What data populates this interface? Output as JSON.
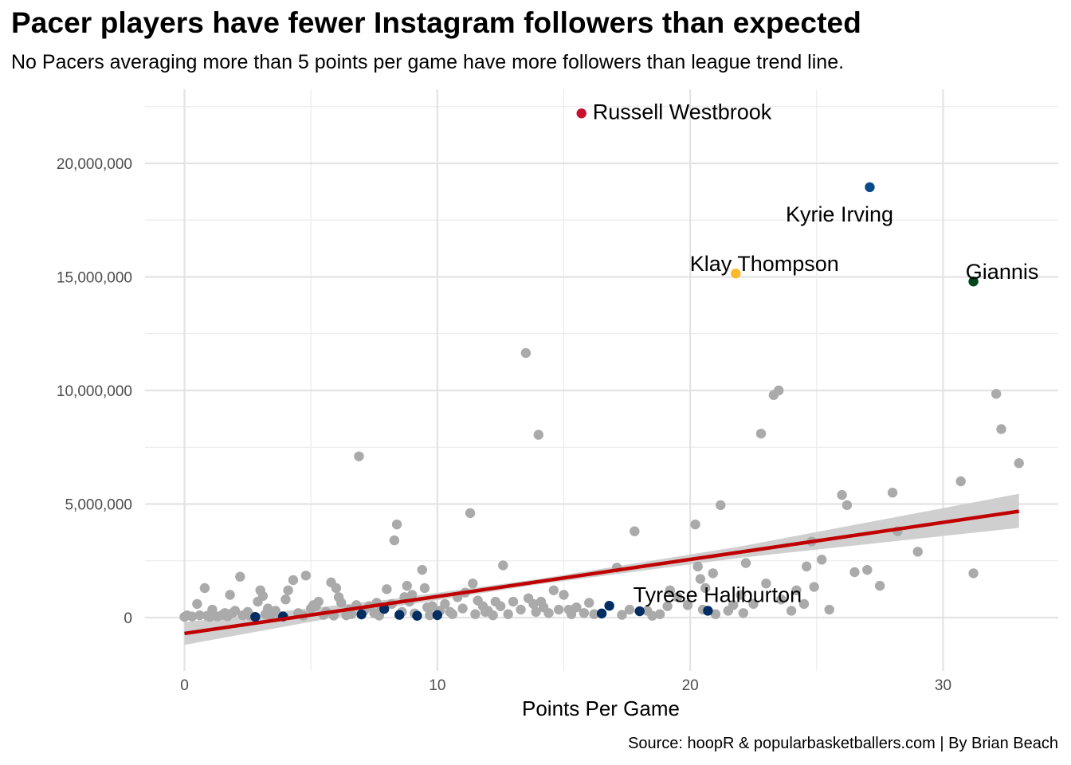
{
  "chart_data": {
    "type": "scatter",
    "title": "Pacer players have fewer Instagram followers than expected",
    "subtitle": "No Pacers averaging more than 5 points per game have more followers than league trend line.",
    "xlabel": "Points Per Game",
    "ylabel": "",
    "caption": "Source: hoopR & popularbasketballers.com | By Brian Beach",
    "xlim": [
      -1.5,
      34.5
    ],
    "ylim": [
      -2250000,
      23000000
    ],
    "x_ticks": [
      0,
      10,
      20,
      30
    ],
    "x_tick_labels": [
      "0",
      "10",
      "20",
      "30"
    ],
    "y_ticks": [
      0,
      5000000,
      10000000,
      15000000,
      20000000
    ],
    "y_tick_labels": [
      "0",
      "5,000,000",
      "10,000,000",
      "15,000,000",
      "20,000,000"
    ],
    "grid": true,
    "legend": "none",
    "colors": {
      "league": "#aaaaaa",
      "pacers": "#002d62",
      "trend": "#c00000",
      "band": "#cccccc",
      "westbrook": "#c8102e",
      "irving": "#0b4a8a",
      "thompson": "#fdb927",
      "giannis": "#00471b"
    },
    "trend_line": {
      "x0": 0,
      "y0": -700000,
      "x1": 33,
      "y1": 4680000,
      "band_lo_end": 3950000,
      "band_hi_end": 5450000
    },
    "highlighted": [
      {
        "name": "Russell Westbrook",
        "x": 15.7,
        "y": 22200000,
        "color": "#c8102e",
        "label_dx": 14,
        "label_dy": -2,
        "anchor": "start"
      },
      {
        "name": "Kyrie Irving",
        "x": 27.1,
        "y": 18950000,
        "color": "#0b4a8a",
        "label_dx": -38,
        "label_dy": 34,
        "anchor": "middle"
      },
      {
        "name": "Klay Thompson",
        "x": 21.8,
        "y": 15150000,
        "color": "#fdb927",
        "label_dx": 36,
        "label_dy": -12,
        "anchor": "middle"
      },
      {
        "name": "Giannis",
        "x": 31.2,
        "y": 14800000,
        "color": "#00471b",
        "label_dx": 36,
        "label_dy": -12,
        "anchor": "middle"
      },
      {
        "name": "Tyrese Haliburton",
        "x": 20.7,
        "y": 300000,
        "color": "#002d62",
        "label_dx": 12,
        "label_dy": -20,
        "anchor": "middle"
      }
    ],
    "pacers_points": [
      [
        2.8,
        30000
      ],
      [
        3.9,
        50000
      ],
      [
        7.0,
        140000
      ],
      [
        7.9,
        380000
      ],
      [
        8.5,
        120000
      ],
      [
        9.2,
        80000
      ],
      [
        10.0,
        110000
      ],
      [
        16.5,
        180000
      ],
      [
        16.8,
        520000
      ],
      [
        18.0,
        280000
      ]
    ],
    "league_points": [
      [
        0.0,
        30000
      ],
      [
        0.1,
        100000
      ],
      [
        0.5,
        600000
      ],
      [
        0.6,
        100000
      ],
      [
        0.8,
        1300000
      ],
      [
        0.9,
        80000
      ],
      [
        1.0,
        30000
      ],
      [
        1.1,
        350000
      ],
      [
        1.3,
        50000
      ],
      [
        1.5,
        120000
      ],
      [
        1.7,
        60000
      ],
      [
        1.8,
        1000000
      ],
      [
        1.9,
        200000
      ],
      [
        2.2,
        1800000
      ],
      [
        2.3,
        100000
      ],
      [
        2.5,
        250000
      ],
      [
        2.6,
        90000
      ],
      [
        2.9,
        700000
      ],
      [
        3.0,
        1200000
      ],
      [
        3.1,
        950000
      ],
      [
        3.2,
        150000
      ],
      [
        3.4,
        100000
      ],
      [
        3.6,
        300000
      ],
      [
        3.8,
        60000
      ],
      [
        4.1,
        1200000
      ],
      [
        4.3,
        1650000
      ],
      [
        4.5,
        200000
      ],
      [
        4.7,
        80000
      ],
      [
        4.8,
        1850000
      ],
      [
        5.0,
        400000
      ],
      [
        5.1,
        550000
      ],
      [
        5.3,
        700000
      ],
      [
        5.5,
        120000
      ],
      [
        5.6,
        250000
      ],
      [
        5.8,
        1550000
      ],
      [
        5.9,
        90000
      ],
      [
        6.0,
        1300000
      ],
      [
        6.2,
        650000
      ],
      [
        6.4,
        100000
      ],
      [
        6.5,
        350000
      ],
      [
        6.8,
        550000
      ],
      [
        6.9,
        7100000
      ],
      [
        7.1,
        300000
      ],
      [
        7.3,
        500000
      ],
      [
        7.5,
        200000
      ],
      [
        7.7,
        90000
      ],
      [
        7.8,
        400000
      ],
      [
        8.0,
        1250000
      ],
      [
        8.2,
        600000
      ],
      [
        8.3,
        3400000
      ],
      [
        8.4,
        4100000
      ],
      [
        8.6,
        250000
      ],
      [
        8.8,
        1400000
      ],
      [
        8.9,
        700000
      ],
      [
        9.0,
        1000000
      ],
      [
        9.1,
        180000
      ],
      [
        9.4,
        2100000
      ],
      [
        9.5,
        1300000
      ],
      [
        9.6,
        450000
      ],
      [
        9.7,
        100000
      ],
      [
        10.1,
        300000
      ],
      [
        10.3,
        600000
      ],
      [
        10.5,
        250000
      ],
      [
        10.8,
        900000
      ],
      [
        11.0,
        400000
      ],
      [
        11.1,
        1100000
      ],
      [
        11.3,
        4600000
      ],
      [
        11.4,
        1500000
      ],
      [
        11.5,
        150000
      ],
      [
        11.6,
        750000
      ],
      [
        11.8,
        500000
      ],
      [
        12.0,
        300000
      ],
      [
        12.2,
        100000
      ],
      [
        12.5,
        500000
      ],
      [
        12.6,
        2300000
      ],
      [
        12.8,
        150000
      ],
      [
        13.0,
        700000
      ],
      [
        13.3,
        350000
      ],
      [
        13.5,
        11650000
      ],
      [
        13.6,
        850000
      ],
      [
        13.8,
        600000
      ],
      [
        14.0,
        8050000
      ],
      [
        14.2,
        450000
      ],
      [
        14.4,
        200000
      ],
      [
        14.6,
        1200000
      ],
      [
        14.8,
        350000
      ],
      [
        15.0,
        1000000
      ],
      [
        15.3,
        150000
      ],
      [
        15.5,
        450000
      ],
      [
        15.8,
        200000
      ],
      [
        16.0,
        650000
      ],
      [
        17.1,
        2200000
      ],
      [
        17.3,
        120000
      ],
      [
        17.8,
        3800000
      ],
      [
        18.3,
        300000
      ],
      [
        18.5,
        80000
      ],
      [
        18.8,
        150000
      ],
      [
        19.1,
        500000
      ],
      [
        19.5,
        900000
      ],
      [
        19.9,
        550000
      ],
      [
        20.2,
        4100000
      ],
      [
        20.3,
        2250000
      ],
      [
        20.4,
        1700000
      ],
      [
        20.6,
        1300000
      ],
      [
        20.9,
        1950000
      ],
      [
        21.0,
        150000
      ],
      [
        21.2,
        4950000
      ],
      [
        21.5,
        300000
      ],
      [
        22.0,
        1000000
      ],
      [
        22.2,
        2400000
      ],
      [
        22.5,
        600000
      ],
      [
        22.8,
        8100000
      ],
      [
        23.3,
        9800000
      ],
      [
        23.5,
        10000000
      ],
      [
        23.6,
        800000
      ],
      [
        24.0,
        300000
      ],
      [
        24.2,
        1200000
      ],
      [
        24.6,
        2250000
      ],
      [
        24.8,
        3350000
      ],
      [
        24.9,
        1350000
      ],
      [
        25.2,
        2550000
      ],
      [
        25.5,
        350000
      ],
      [
        26.0,
        5400000
      ],
      [
        26.2,
        4950000
      ],
      [
        27.0,
        2100000
      ],
      [
        27.5,
        1400000
      ],
      [
        28.0,
        5500000
      ],
      [
        28.2,
        3800000
      ],
      [
        29.0,
        2900000
      ],
      [
        30.7,
        6000000
      ],
      [
        31.2,
        1950000
      ],
      [
        32.1,
        9850000
      ],
      [
        32.3,
        8300000
      ],
      [
        33.0,
        6800000
      ],
      [
        23.0,
        1500000
      ],
      [
        24.5,
        600000
      ],
      [
        26.5,
        2000000
      ],
      [
        19.2,
        1200000
      ],
      [
        12.3,
        700000
      ],
      [
        5.2,
        500000
      ],
      [
        3.3,
        400000
      ],
      [
        1.6,
        200000
      ],
      [
        6.6,
        150000
      ],
      [
        8.7,
        900000
      ],
      [
        10.6,
        150000
      ],
      [
        14.1,
        700000
      ],
      [
        15.2,
        350000
      ],
      [
        17.6,
        350000
      ],
      [
        21.7,
        550000
      ],
      [
        22.1,
        200000
      ],
      [
        0.3,
        50000
      ],
      [
        2.0,
        300000
      ],
      [
        4.0,
        800000
      ],
      [
        6.1,
        900000
      ],
      [
        7.6,
        650000
      ],
      [
        9.8,
        500000
      ],
      [
        11.9,
        250000
      ],
      [
        13.9,
        250000
      ],
      [
        16.2,
        150000
      ],
      [
        20.5,
        350000
      ]
    ]
  }
}
